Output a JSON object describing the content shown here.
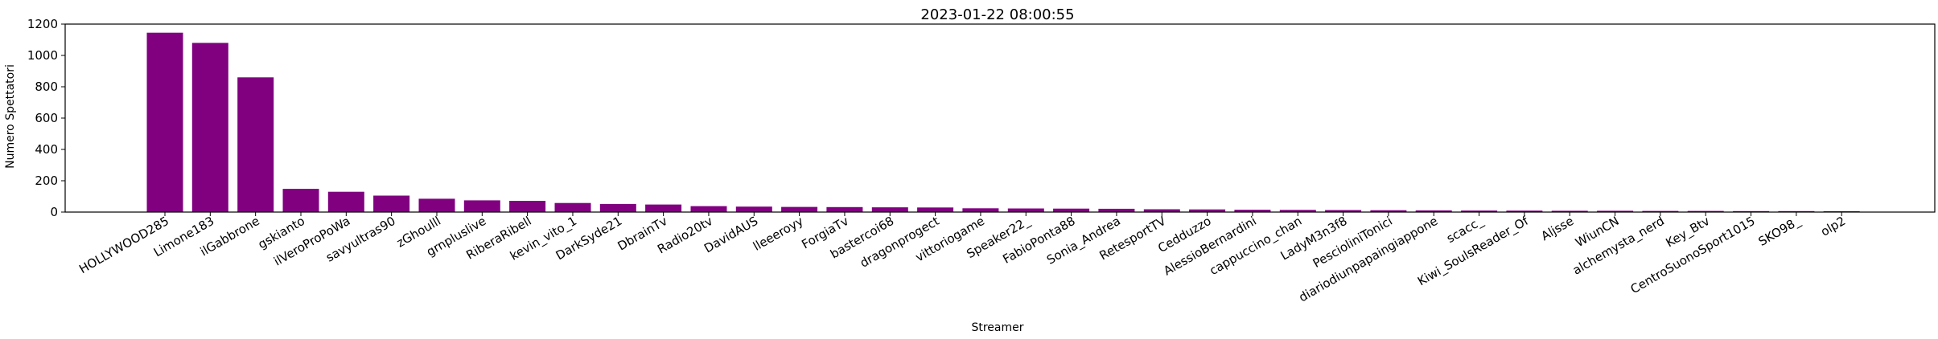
{
  "chart_data": {
    "type": "bar",
    "title": "2023-01-22 08:00:55",
    "xlabel": "Streamer",
    "ylabel": "Numero Spettatori",
    "ylim": [
      0,
      1200
    ],
    "yticks": [
      0,
      200,
      400,
      600,
      800,
      1000,
      1200
    ],
    "bar_color": "#800080",
    "grid": false,
    "categories": [
      "HOLLYWOOD285",
      "Limone183",
      "ilGabbrone",
      "gskianto",
      "ilVeroProPoWa",
      "savyultras90",
      "zGhoulll",
      "grnpluslive",
      "RiberaRibell",
      "kevin_vito_1",
      "DarkSyde21",
      "DbrainTv",
      "Radio20tv",
      "DavidAUS",
      "lleeeroyy",
      "ForgiaTv",
      "bastercoi68",
      "dragonprogect",
      "vittoriogame",
      "Speaker22_",
      "FabioPonta88",
      "Sonia_Andrea",
      "RetesportTV",
      "Cedduzzo",
      "AlessioBernardini",
      "cappuccino_chan",
      "LadyM3n3f8",
      "PescioliniTonici",
      "diariodiunpapaingiappone",
      "scacc_",
      "Kiwi_SoulsReader_Of",
      "Aljsse",
      "WiunCN",
      "alchemysta_nerd",
      "Key_Btv",
      "CentroSuonoSport1015",
      "SKO98_",
      "olp2"
    ],
    "values": [
      1145,
      1080,
      860,
      148,
      130,
      105,
      85,
      75,
      72,
      58,
      52,
      48,
      38,
      35,
      33,
      32,
      30,
      29,
      24,
      23,
      22,
      21,
      18,
      17,
      15,
      14,
      13,
      12,
      11,
      10,
      9,
      8,
      8,
      7,
      7,
      6,
      6,
      5
    ]
  }
}
